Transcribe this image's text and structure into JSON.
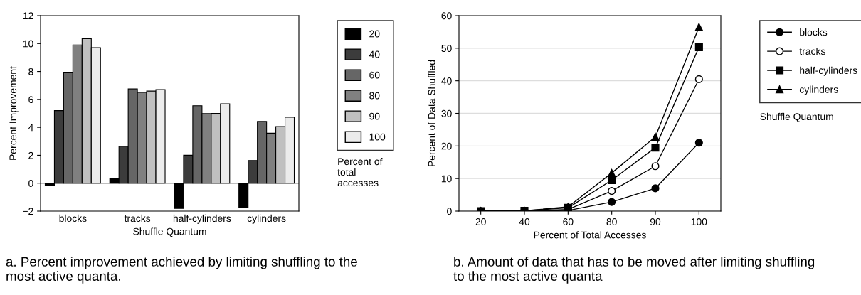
{
  "chart_data": [
    {
      "type": "bar",
      "xlabel": "Shuffle Quantum",
      "ylabel": "Percent Improvement",
      "categories": [
        "blocks",
        "tracks",
        "half-cylinders",
        "cylinders"
      ],
      "ylim": [
        -2,
        12
      ],
      "yticks": [
        -2,
        0,
        2,
        4,
        6,
        8,
        10,
        12
      ],
      "legend": "right",
      "legend_title": "Percent of total accesses",
      "annotations": [
        "a. Percent improvement achieved by limiting shuffling to the most active quanta."
      ],
      "series": [
        {
          "name": "20",
          "color": "#000000",
          "values": [
            -0.15,
            0.35,
            -1.8,
            -1.75
          ]
        },
        {
          "name": "40",
          "color": "#3c3c3c",
          "values": [
            5.2,
            2.65,
            2.0,
            1.62
          ]
        },
        {
          "name": "60",
          "color": "#666666",
          "values": [
            7.95,
            6.75,
            5.55,
            4.42
          ]
        },
        {
          "name": "80",
          "color": "#808080",
          "values": [
            9.9,
            6.5,
            4.98,
            3.58
          ]
        },
        {
          "name": "90",
          "color": "#c0c0c0",
          "values": [
            10.35,
            6.6,
            5.0,
            4.05
          ]
        },
        {
          "name": "100",
          "color": "#ececec",
          "values": [
            9.7,
            6.7,
            5.68,
            4.72
          ]
        }
      ]
    },
    {
      "type": "line",
      "xlabel": "Percent of Total Accesses",
      "ylabel": "Percent of Data Shuffled",
      "categories": [
        "20",
        "40",
        "60",
        "80",
        "90",
        "100"
      ],
      "ylim": [
        0,
        60
      ],
      "yticks": [
        0,
        10,
        20,
        30,
        40,
        50,
        60
      ],
      "grid": "y",
      "legend": "right",
      "legend_title": "Shuffle Quantum",
      "annotations": [
        "b. Amount of data that has to be moved after limiting shuffling to the most active quanta"
      ],
      "series": [
        {
          "name": "blocks",
          "color": "#000000",
          "marker": "circle",
          "values": [
            0,
            0,
            0.2,
            2.8,
            7,
            21
          ]
        },
        {
          "name": "tracks",
          "color": "#ffffff",
          "marker": "circle",
          "values": [
            0,
            0,
            0.5,
            6.2,
            13.8,
            40.5
          ]
        },
        {
          "name": "half-cylinders",
          "color": "#000000",
          "marker": "square",
          "values": [
            0,
            0.1,
            1.0,
            9.5,
            19.5,
            50.3
          ]
        },
        {
          "name": "cylinders",
          "color": "#000000",
          "marker": "triangle",
          "values": [
            0,
            0.1,
            1.3,
            11.7,
            22.8,
            56.5
          ]
        }
      ]
    }
  ]
}
